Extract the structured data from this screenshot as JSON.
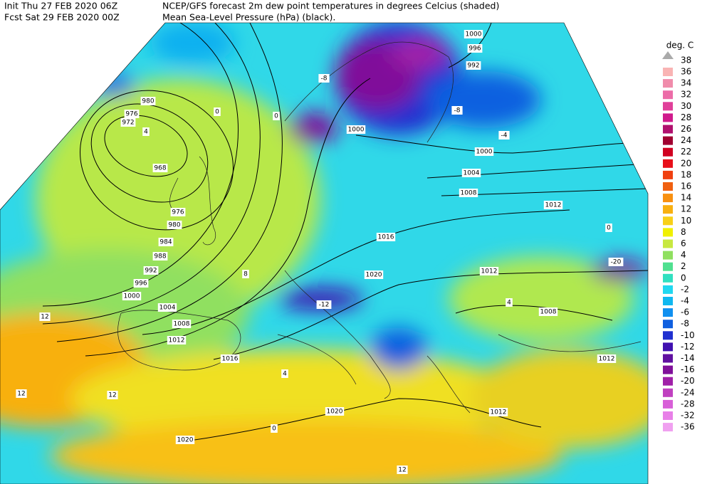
{
  "header": {
    "init": "Init  Thu 27 FEB 2020 06Z",
    "fcst": "Fcst Sat 29 FEB 2020 00Z",
    "title": "NCEP/GFS forecast 2m dew point temperatures in degrees Celcius (shaded)",
    "subtitle": "Mean Sea-Level Pressure (hPa) (black)."
  },
  "legend": {
    "title": "deg. C",
    "top": 38,
    "levels": [
      36,
      34,
      32,
      30,
      28,
      26,
      24,
      22,
      20,
      18,
      16,
      14,
      12,
      10,
      8,
      6,
      4,
      2,
      0,
      -2,
      -4,
      -6,
      -8,
      -10,
      -12,
      -14,
      -16,
      -20,
      -24,
      -28,
      -32,
      -36
    ],
    "colors": [
      "#f9b4b4",
      "#f08cab",
      "#ec6ca8",
      "#e0409a",
      "#d01a8c",
      "#b0106e",
      "#a00030",
      "#d00020",
      "#e8101a",
      "#f04010",
      "#f06010",
      "#f89010",
      "#f8b010",
      "#f8d018",
      "#f0f000",
      "#c8e840",
      "#90e060",
      "#50e090",
      "#30e0c0",
      "#20d8f0",
      "#10b8f0",
      "#1090f0",
      "#1060e0",
      "#2030d0",
      "#4010b0",
      "#6010a0",
      "#80109a",
      "#a020a8",
      "#c040c0",
      "#d860d8",
      "#e880e8",
      "#f0a0f0"
    ]
  },
  "isobar_labels": [
    980,
    976,
    972,
    968,
    976,
    980,
    984,
    988,
    992,
    996,
    1000,
    1004,
    1008,
    1012,
    1016,
    1020,
    1020,
    1016,
    1020,
    1012,
    1008,
    1012,
    1012,
    1012,
    1008,
    1004,
    1000,
    1000,
    992,
    996,
    1000
  ],
  "dewpoint_labels": [
    4,
    0,
    0,
    -4,
    -8,
    -12,
    0,
    4,
    8,
    12,
    12,
    12,
    -20,
    -8,
    4,
    0,
    12
  ]
}
